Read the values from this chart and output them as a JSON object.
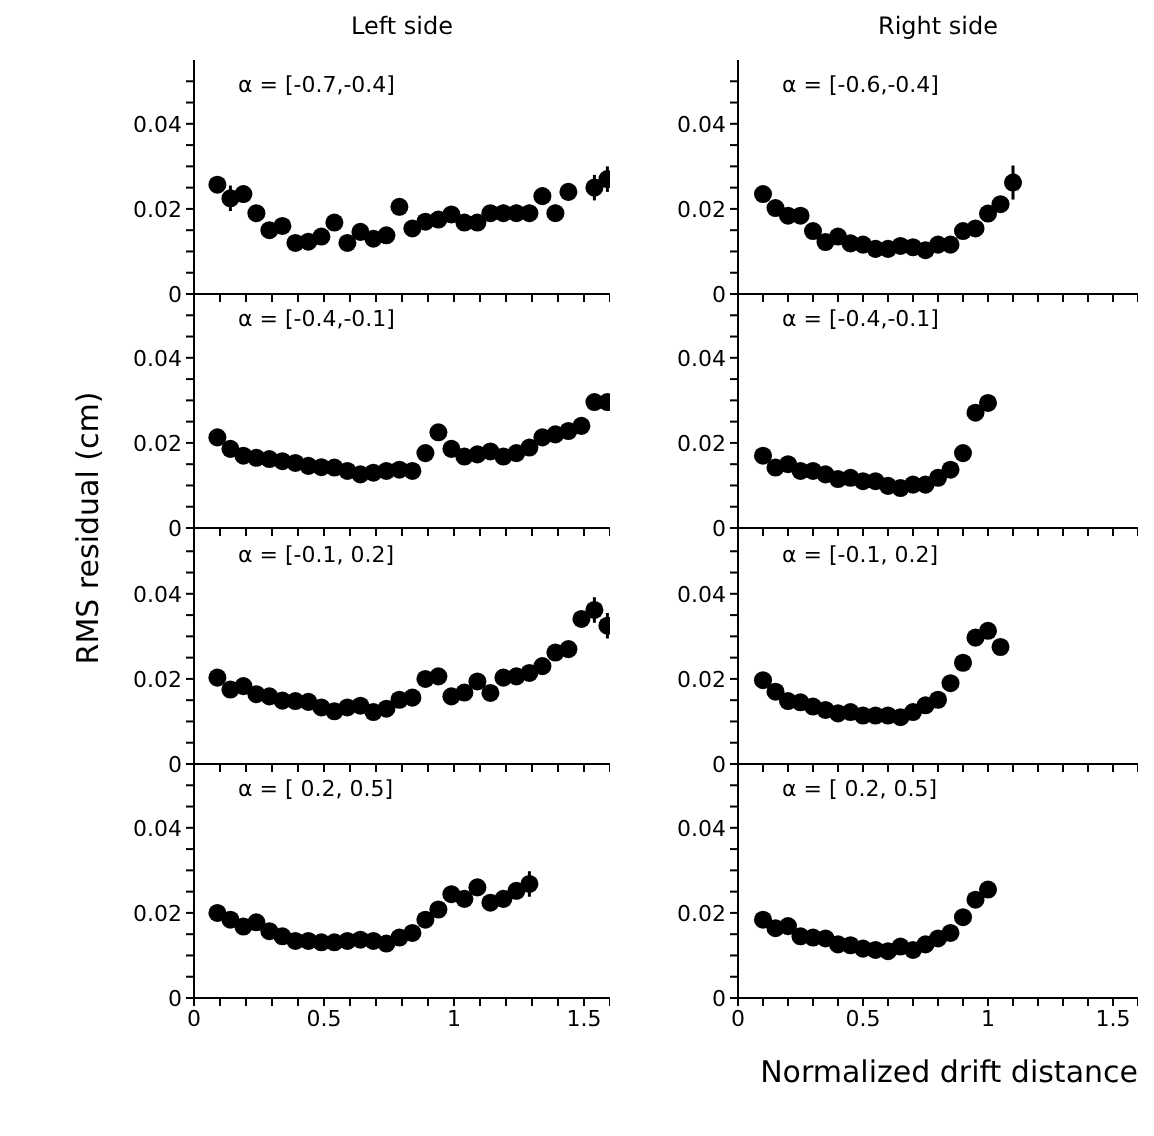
{
  "chart_data": [
    {
      "type": "scatter",
      "title": "Left side",
      "annotations": [
        "α = [-0.7,-0.4]"
      ],
      "color": "#000000",
      "marker": "circle",
      "xlim": [
        0,
        1.6
      ],
      "ylim": [
        0,
        0.055
      ],
      "xticks": [
        0,
        {
          "value": 0.1,
          "label": null
        },
        {
          "value": 0.2,
          "label": null
        },
        {
          "value": 0.3,
          "label": null
        },
        {
          "value": 0.4,
          "label": null
        },
        0.5,
        {
          "value": 0.6,
          "label": null
        },
        {
          "value": 0.7,
          "label": null
        },
        {
          "value": 0.8,
          "label": null
        },
        {
          "value": 0.9,
          "label": null
        },
        1,
        {
          "value": 1.1,
          "label": null
        },
        {
          "value": 1.2,
          "label": null
        },
        {
          "value": 1.3,
          "label": null
        },
        {
          "value": 1.4,
          "label": null
        },
        1.5,
        {
          "value": 1.6,
          "label": null
        }
      ],
      "yticks": [
        0,
        {
          "value": 0.005,
          "label": null
        },
        {
          "value": 0.01,
          "label": null
        },
        {
          "value": 0.015,
          "label": null
        },
        0.02,
        {
          "value": 0.025,
          "label": null
        },
        {
          "value": 0.03,
          "label": null
        },
        {
          "value": 0.035,
          "label": null
        },
        0.04,
        {
          "value": 0.045,
          "label": null
        },
        {
          "value": 0.05,
          "label": null
        }
      ],
      "tick_labels": "y",
      "x": [
        0.09,
        0.14,
        0.19,
        0.24,
        0.29,
        0.34,
        0.39,
        0.44,
        0.49,
        0.54,
        0.59,
        0.64,
        0.69,
        0.74,
        0.79,
        0.84,
        0.89,
        0.94,
        0.99,
        1.04,
        1.09,
        1.14,
        1.19,
        1.24,
        1.29,
        1.34,
        1.39,
        1.44,
        1.54,
        1.59
      ],
      "values": [
        0.0257,
        0.0225,
        0.0235,
        0.019,
        0.015,
        0.016,
        0.012,
        0.0123,
        0.0135,
        0.0168,
        0.012,
        0.0146,
        0.013,
        0.0138,
        0.0205,
        0.0154,
        0.017,
        0.0175,
        0.0187,
        0.0168,
        0.0168,
        0.019,
        0.019,
        0.019,
        0.019,
        0.023,
        0.019,
        0.024,
        0.025,
        0.027
      ],
      "errors": [
        null,
        0.003,
        0.002,
        null,
        null,
        null,
        null,
        null,
        null,
        null,
        null,
        null,
        null,
        null,
        0.002,
        null,
        null,
        null,
        null,
        null,
        null,
        null,
        0.002,
        0.002,
        0.002,
        0.002,
        0.002,
        0.002,
        0.003,
        0.003
      ]
    },
    {
      "type": "scatter",
      "title": "Right side",
      "annotations": [
        "α = [-0.6,-0.4]"
      ],
      "color": "#000000",
      "marker": "circle",
      "xlim": [
        0,
        1.6
      ],
      "ylim": [
        0,
        0.055
      ],
      "xticks": [
        0,
        {
          "value": 0.1,
          "label": null
        },
        {
          "value": 0.2,
          "label": null
        },
        {
          "value": 0.3,
          "label": null
        },
        {
          "value": 0.4,
          "label": null
        },
        0.5,
        {
          "value": 0.6,
          "label": null
        },
        {
          "value": 0.7,
          "label": null
        },
        {
          "value": 0.8,
          "label": null
        },
        {
          "value": 0.9,
          "label": null
        },
        1,
        {
          "value": 1.1,
          "label": null
        },
        {
          "value": 1.2,
          "label": null
        },
        {
          "value": 1.3,
          "label": null
        },
        {
          "value": 1.4,
          "label": null
        },
        1.5,
        {
          "value": 1.6,
          "label": null
        }
      ],
      "yticks": [
        0,
        {
          "value": 0.005,
          "label": null
        },
        {
          "value": 0.01,
          "label": null
        },
        {
          "value": 0.015,
          "label": null
        },
        0.02,
        {
          "value": 0.025,
          "label": null
        },
        {
          "value": 0.03,
          "label": null
        },
        {
          "value": 0.035,
          "label": null
        },
        0.04,
        {
          "value": 0.045,
          "label": null
        },
        {
          "value": 0.05,
          "label": null
        }
      ],
      "tick_labels": "y",
      "x": [
        0.1,
        0.15,
        0.2,
        0.25,
        0.3,
        0.35,
        0.4,
        0.45,
        0.5,
        0.55,
        0.6,
        0.65,
        0.7,
        0.75,
        0.8,
        0.85,
        0.9,
        0.95,
        1.0,
        1.05,
        1.1
      ],
      "values": [
        0.0235,
        0.0202,
        0.0184,
        0.0184,
        0.0148,
        0.0122,
        0.0135,
        0.0119,
        0.0116,
        0.0106,
        0.0106,
        0.0113,
        0.011,
        0.0103,
        0.0116,
        0.0116,
        0.0148,
        0.0154,
        0.0189,
        0.0211,
        0.0262
      ],
      "errors": [
        null,
        null,
        null,
        null,
        null,
        null,
        null,
        null,
        null,
        null,
        null,
        null,
        null,
        null,
        null,
        null,
        null,
        null,
        null,
        null,
        0.004
      ]
    },
    {
      "type": "scatter",
      "ylabel": "RMS residual (cm)",
      "annotations": [
        "α = [-0.4,-0.1]"
      ],
      "color": "#000000",
      "marker": "circle",
      "xlim": [
        0,
        1.6
      ],
      "ylim": [
        0,
        0.055
      ],
      "xticks": [
        0,
        {
          "value": 0.1,
          "label": null
        },
        {
          "value": 0.2,
          "label": null
        },
        {
          "value": 0.3,
          "label": null
        },
        {
          "value": 0.4,
          "label": null
        },
        0.5,
        {
          "value": 0.6,
          "label": null
        },
        {
          "value": 0.7,
          "label": null
        },
        {
          "value": 0.8,
          "label": null
        },
        {
          "value": 0.9,
          "label": null
        },
        1,
        {
          "value": 1.1,
          "label": null
        },
        {
          "value": 1.2,
          "label": null
        },
        {
          "value": 1.3,
          "label": null
        },
        {
          "value": 1.4,
          "label": null
        },
        1.5,
        {
          "value": 1.6,
          "label": null
        }
      ],
      "yticks": [
        0,
        {
          "value": 0.005,
          "label": null
        },
        {
          "value": 0.01,
          "label": null
        },
        {
          "value": 0.015,
          "label": null
        },
        0.02,
        {
          "value": 0.025,
          "label": null
        },
        {
          "value": 0.03,
          "label": null
        },
        {
          "value": 0.035,
          "label": null
        },
        0.04,
        {
          "value": 0.045,
          "label": null
        },
        {
          "value": 0.05,
          "label": null
        }
      ],
      "tick_labels": "y",
      "x": [
        0.09,
        0.14,
        0.19,
        0.24,
        0.29,
        0.34,
        0.39,
        0.44,
        0.49,
        0.54,
        0.59,
        0.64,
        0.69,
        0.74,
        0.79,
        0.84,
        0.89,
        0.94,
        0.99,
        1.04,
        1.09,
        1.14,
        1.19,
        1.24,
        1.29,
        1.34,
        1.39,
        1.44,
        1.49,
        1.54,
        1.59
      ],
      "values": [
        0.0213,
        0.0186,
        0.017,
        0.0165,
        0.0162,
        0.0157,
        0.0153,
        0.0146,
        0.0143,
        0.0142,
        0.0134,
        0.0126,
        0.013,
        0.0134,
        0.0137,
        0.0134,
        0.0176,
        0.0225,
        0.0186,
        0.0168,
        0.0173,
        0.018,
        0.0168,
        0.0176,
        0.0189,
        0.0213,
        0.022,
        0.0228,
        0.024,
        0.0296,
        0.0296
      ]
    },
    {
      "type": "scatter",
      "annotations": [
        "α = [-0.4,-0.1]"
      ],
      "color": "#000000",
      "marker": "circle",
      "xlim": [
        0,
        1.6
      ],
      "ylim": [
        0,
        0.055
      ],
      "xticks": [
        0,
        {
          "value": 0.1,
          "label": null
        },
        {
          "value": 0.2,
          "label": null
        },
        {
          "value": 0.3,
          "label": null
        },
        {
          "value": 0.4,
          "label": null
        },
        0.5,
        {
          "value": 0.6,
          "label": null
        },
        {
          "value": 0.7,
          "label": null
        },
        {
          "value": 0.8,
          "label": null
        },
        {
          "value": 0.9,
          "label": null
        },
        1,
        {
          "value": 1.1,
          "label": null
        },
        {
          "value": 1.2,
          "label": null
        },
        {
          "value": 1.3,
          "label": null
        },
        {
          "value": 1.4,
          "label": null
        },
        1.5,
        {
          "value": 1.6,
          "label": null
        }
      ],
      "yticks": [
        0,
        {
          "value": 0.005,
          "label": null
        },
        {
          "value": 0.01,
          "label": null
        },
        {
          "value": 0.015,
          "label": null
        },
        0.02,
        {
          "value": 0.025,
          "label": null
        },
        {
          "value": 0.03,
          "label": null
        },
        {
          "value": 0.035,
          "label": null
        },
        0.04,
        {
          "value": 0.045,
          "label": null
        },
        {
          "value": 0.05,
          "label": null
        }
      ],
      "tick_labels": "y",
      "x": [
        0.1,
        0.15,
        0.2,
        0.25,
        0.3,
        0.35,
        0.4,
        0.45,
        0.5,
        0.55,
        0.6,
        0.65,
        0.7,
        0.75,
        0.8,
        0.85,
        0.9,
        0.95,
        1.0
      ],
      "values": [
        0.017,
        0.0142,
        0.015,
        0.0134,
        0.0134,
        0.0126,
        0.0115,
        0.0118,
        0.011,
        0.011,
        0.0099,
        0.0094,
        0.0102,
        0.0102,
        0.0118,
        0.0137,
        0.0176,
        0.0271,
        0.0294
      ]
    },
    {
      "type": "scatter",
      "annotations": [
        "α = [-0.1, 0.2]"
      ],
      "color": "#000000",
      "marker": "circle",
      "xlim": [
        0,
        1.6
      ],
      "ylim": [
        0,
        0.055
      ],
      "xticks": [
        0,
        {
          "value": 0.1,
          "label": null
        },
        {
          "value": 0.2,
          "label": null
        },
        {
          "value": 0.3,
          "label": null
        },
        {
          "value": 0.4,
          "label": null
        },
        0.5,
        {
          "value": 0.6,
          "label": null
        },
        {
          "value": 0.7,
          "label": null
        },
        {
          "value": 0.8,
          "label": null
        },
        {
          "value": 0.9,
          "label": null
        },
        1,
        {
          "value": 1.1,
          "label": null
        },
        {
          "value": 1.2,
          "label": null
        },
        {
          "value": 1.3,
          "label": null
        },
        {
          "value": 1.4,
          "label": null
        },
        1.5,
        {
          "value": 1.6,
          "label": null
        }
      ],
      "yticks": [
        0,
        {
          "value": 0.005,
          "label": null
        },
        {
          "value": 0.01,
          "label": null
        },
        {
          "value": 0.015,
          "label": null
        },
        0.02,
        {
          "value": 0.025,
          "label": null
        },
        {
          "value": 0.03,
          "label": null
        },
        {
          "value": 0.035,
          "label": null
        },
        0.04,
        {
          "value": 0.045,
          "label": null
        },
        {
          "value": 0.05,
          "label": null
        }
      ],
      "tick_labels": "y",
      "x": [
        0.09,
        0.14,
        0.19,
        0.24,
        0.29,
        0.34,
        0.39,
        0.44,
        0.49,
        0.54,
        0.59,
        0.64,
        0.69,
        0.74,
        0.79,
        0.84,
        0.89,
        0.94,
        0.99,
        1.04,
        1.09,
        1.14,
        1.19,
        1.24,
        1.29,
        1.34,
        1.39,
        1.44,
        1.49,
        1.54,
        1.59
      ],
      "values": [
        0.0203,
        0.0175,
        0.0183,
        0.0164,
        0.0159,
        0.0149,
        0.0148,
        0.0146,
        0.0133,
        0.0124,
        0.0133,
        0.0137,
        0.0122,
        0.013,
        0.0151,
        0.0156,
        0.02,
        0.0206,
        0.0159,
        0.0168,
        0.0194,
        0.0167,
        0.0203,
        0.0206,
        0.0214,
        0.023,
        0.0262,
        0.027,
        0.0341,
        0.0362,
        0.0325
      ],
      "errors": [
        null,
        null,
        null,
        null,
        null,
        null,
        null,
        null,
        null,
        null,
        null,
        null,
        null,
        null,
        null,
        null,
        null,
        null,
        null,
        null,
        null,
        null,
        null,
        null,
        null,
        null,
        null,
        null,
        null,
        0.003,
        0.003
      ]
    },
    {
      "type": "scatter",
      "annotations": [
        "α = [-0.1, 0.2]"
      ],
      "color": "#000000",
      "marker": "circle",
      "xlim": [
        0,
        1.6
      ],
      "ylim": [
        0,
        0.055
      ],
      "xticks": [
        0,
        {
          "value": 0.1,
          "label": null
        },
        {
          "value": 0.2,
          "label": null
        },
        {
          "value": 0.3,
          "label": null
        },
        {
          "value": 0.4,
          "label": null
        },
        0.5,
        {
          "value": 0.6,
          "label": null
        },
        {
          "value": 0.7,
          "label": null
        },
        {
          "value": 0.8,
          "label": null
        },
        {
          "value": 0.9,
          "label": null
        },
        1,
        {
          "value": 1.1,
          "label": null
        },
        {
          "value": 1.2,
          "label": null
        },
        {
          "value": 1.3,
          "label": null
        },
        {
          "value": 1.4,
          "label": null
        },
        1.5,
        {
          "value": 1.6,
          "label": null
        }
      ],
      "yticks": [
        0,
        {
          "value": 0.005,
          "label": null
        },
        {
          "value": 0.01,
          "label": null
        },
        {
          "value": 0.015,
          "label": null
        },
        0.02,
        {
          "value": 0.025,
          "label": null
        },
        {
          "value": 0.03,
          "label": null
        },
        {
          "value": 0.035,
          "label": null
        },
        0.04,
        {
          "value": 0.045,
          "label": null
        },
        {
          "value": 0.05,
          "label": null
        }
      ],
      "tick_labels": "y",
      "x": [
        0.1,
        0.15,
        0.2,
        0.25,
        0.3,
        0.35,
        0.4,
        0.45,
        0.5,
        0.55,
        0.6,
        0.65,
        0.7,
        0.75,
        0.8,
        0.85,
        0.9,
        0.95,
        1.0,
        1.05
      ],
      "values": [
        0.0197,
        0.017,
        0.0148,
        0.0145,
        0.0135,
        0.0127,
        0.0119,
        0.0122,
        0.0114,
        0.0114,
        0.0114,
        0.011,
        0.0122,
        0.0138,
        0.0151,
        0.019,
        0.0238,
        0.0297,
        0.0313,
        0.0275
      ]
    },
    {
      "type": "scatter",
      "annotations": [
        "α = [ 0.2, 0.5]"
      ],
      "color": "#000000",
      "marker": "circle",
      "xlim": [
        0,
        1.6
      ],
      "ylim": [
        0,
        0.055
      ],
      "xticks": [
        0,
        {
          "value": 0.1,
          "label": null
        },
        {
          "value": 0.2,
          "label": null
        },
        {
          "value": 0.3,
          "label": null
        },
        {
          "value": 0.4,
          "label": null
        },
        0.5,
        {
          "value": 0.6,
          "label": null
        },
        {
          "value": 0.7,
          "label": null
        },
        {
          "value": 0.8,
          "label": null
        },
        {
          "value": 0.9,
          "label": null
        },
        1,
        {
          "value": 1.1,
          "label": null
        },
        {
          "value": 1.2,
          "label": null
        },
        {
          "value": 1.3,
          "label": null
        },
        {
          "value": 1.4,
          "label": null
        },
        1.5,
        {
          "value": 1.6,
          "label": null
        }
      ],
      "yticks": [
        0,
        {
          "value": 0.005,
          "label": null
        },
        {
          "value": 0.01,
          "label": null
        },
        {
          "value": 0.015,
          "label": null
        },
        0.02,
        {
          "value": 0.025,
          "label": null
        },
        {
          "value": 0.03,
          "label": null
        },
        {
          "value": 0.035,
          "label": null
        },
        0.04,
        {
          "value": 0.045,
          "label": null
        },
        {
          "value": 0.05,
          "label": null
        }
      ],
      "x": [
        0.09,
        0.14,
        0.19,
        0.24,
        0.29,
        0.34,
        0.39,
        0.44,
        0.49,
        0.54,
        0.59,
        0.64,
        0.69,
        0.74,
        0.79,
        0.84,
        0.89,
        0.94,
        0.99,
        1.04,
        1.09,
        1.14,
        1.19,
        1.24,
        1.29
      ],
      "values": [
        0.02,
        0.0184,
        0.0168,
        0.0178,
        0.0157,
        0.0145,
        0.0134,
        0.0134,
        0.0131,
        0.0131,
        0.0134,
        0.0137,
        0.0134,
        0.0128,
        0.0142,
        0.0153,
        0.0184,
        0.0208,
        0.0244,
        0.0233,
        0.026,
        0.0224,
        0.0233,
        0.0252,
        0.0268
      ],
      "errors": [
        null,
        null,
        null,
        null,
        null,
        null,
        null,
        null,
        null,
        null,
        null,
        null,
        null,
        null,
        null,
        null,
        null,
        null,
        null,
        null,
        null,
        null,
        null,
        0.002,
        0.003
      ]
    },
    {
      "type": "scatter",
      "xlabel": "Normalized drift distance",
      "annotations": [
        "α = [ 0.2, 0.5]"
      ],
      "color": "#000000",
      "marker": "circle",
      "xlim": [
        0,
        1.6
      ],
      "ylim": [
        0,
        0.055
      ],
      "xticks": [
        0,
        {
          "value": 0.1,
          "label": null
        },
        {
          "value": 0.2,
          "label": null
        },
        {
          "value": 0.3,
          "label": null
        },
        {
          "value": 0.4,
          "label": null
        },
        0.5,
        {
          "value": 0.6,
          "label": null
        },
        {
          "value": 0.7,
          "label": null
        },
        {
          "value": 0.8,
          "label": null
        },
        {
          "value": 0.9,
          "label": null
        },
        1,
        {
          "value": 1.1,
          "label": null
        },
        {
          "value": 1.2,
          "label": null
        },
        {
          "value": 1.3,
          "label": null
        },
        {
          "value": 1.4,
          "label": null
        },
        1.5,
        {
          "value": 1.6,
          "label": null
        }
      ],
      "yticks": [
        0,
        {
          "value": 0.005,
          "label": null
        },
        {
          "value": 0.01,
          "label": null
        },
        {
          "value": 0.015,
          "label": null
        },
        0.02,
        {
          "value": 0.025,
          "label": null
        },
        {
          "value": 0.03,
          "label": null
        },
        {
          "value": 0.035,
          "label": null
        },
        0.04,
        {
          "value": 0.045,
          "label": null
        },
        {
          "value": 0.05,
          "label": null
        }
      ],
      "x": [
        0.1,
        0.15,
        0.2,
        0.25,
        0.3,
        0.35,
        0.4,
        0.45,
        0.5,
        0.55,
        0.6,
        0.65,
        0.7,
        0.75,
        0.8,
        0.85,
        0.9,
        0.95,
        1.0
      ],
      "values": [
        0.0184,
        0.0164,
        0.0169,
        0.0145,
        0.0142,
        0.014,
        0.0126,
        0.0124,
        0.0116,
        0.0113,
        0.011,
        0.0121,
        0.0113,
        0.0126,
        0.014,
        0.0153,
        0.019,
        0.0231,
        0.0255
      ]
    }
  ]
}
